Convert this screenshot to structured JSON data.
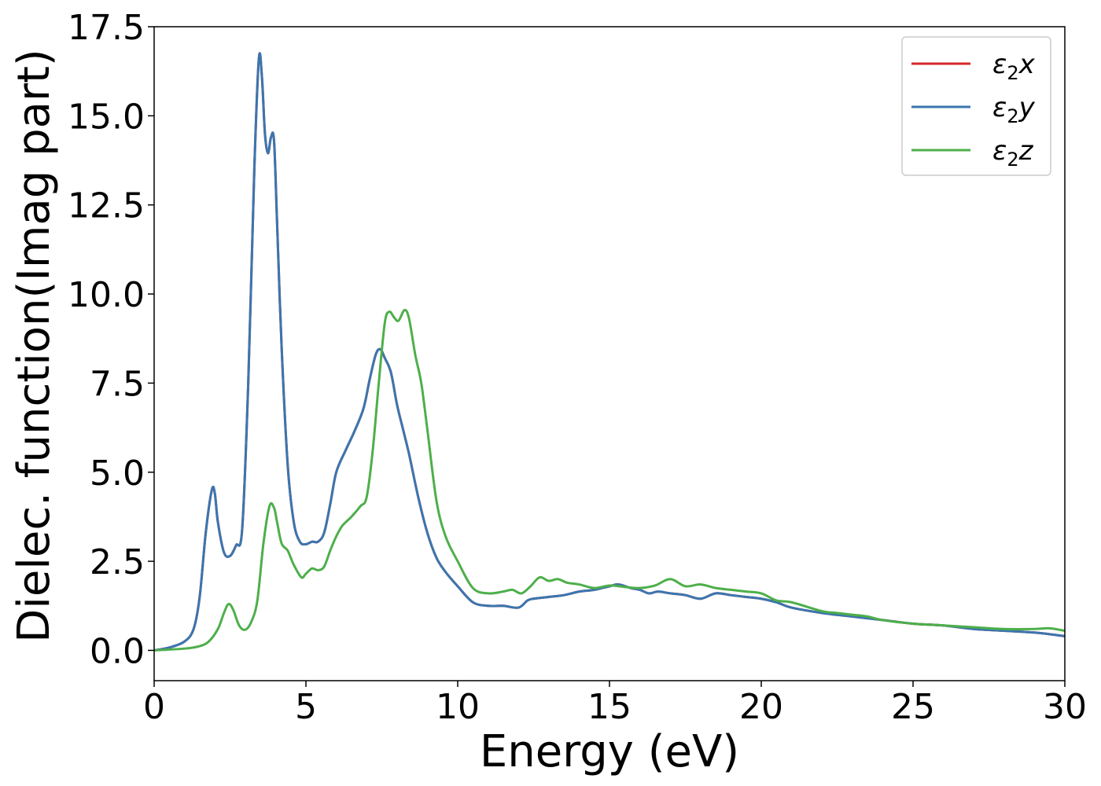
{
  "chart_data": {
    "type": "line",
    "xlabel": "Energy (eV)",
    "ylabel": "Dielec. function(Imag part)",
    "xlim": [
      0,
      30
    ],
    "ylim": [
      -0.85,
      17.5
    ],
    "xticks": [
      0,
      5,
      10,
      15,
      20,
      25,
      30
    ],
    "xtick_labels": [
      "0",
      "5",
      "10",
      "15",
      "20",
      "25",
      "30"
    ],
    "yticks": [
      0.0,
      2.5,
      5.0,
      7.5,
      10.0,
      12.5,
      15.0,
      17.5
    ],
    "ytick_labels": [
      "0.0",
      "2.5",
      "5.0",
      "7.5",
      "10.0",
      "12.5",
      "15.0",
      "17.5"
    ],
    "grid": false,
    "legend_position": "top-right",
    "series": [
      {
        "name": "ε2x",
        "legend_base": "ε",
        "legend_sub": "2",
        "legend_suffix": "x",
        "color": "#d62728",
        "x": [
          0,
          0.5,
          1.0,
          1.3,
          1.5,
          1.7,
          1.9,
          2.0,
          2.1,
          2.3,
          2.5,
          2.7,
          2.9,
          3.1,
          3.3,
          3.45,
          3.55,
          3.65,
          3.75,
          3.85,
          3.95,
          4.05,
          4.2,
          4.4,
          4.6,
          4.8,
          5.0,
          5.2,
          5.4,
          5.6,
          5.8,
          6.0,
          6.3,
          6.6,
          6.9,
          7.1,
          7.3,
          7.45,
          7.6,
          7.8,
          8.0,
          8.2,
          8.4,
          8.7,
          9.0,
          9.3,
          9.6,
          10.0,
          10.5,
          11.0,
          11.5,
          12.0,
          12.3,
          12.5,
          13.0,
          13.5,
          14.0,
          14.5,
          15.0,
          15.3,
          15.7,
          16.0,
          16.3,
          16.6,
          17.0,
          17.5,
          18.0,
          18.5,
          19.0,
          19.5,
          20.0,
          20.5,
          21.0,
          22.0,
          23.0,
          24.0,
          25.0,
          26.0,
          27.0,
          28.0,
          29.0,
          30.0
        ],
        "values": [
          0.0,
          0.08,
          0.25,
          0.6,
          1.5,
          3.3,
          4.5,
          4.4,
          3.6,
          2.75,
          2.65,
          2.95,
          3.4,
          7.5,
          13.5,
          16.6,
          16.1,
          14.5,
          13.95,
          14.4,
          14.3,
          12.0,
          8.5,
          5.2,
          3.6,
          3.05,
          2.98,
          3.05,
          3.05,
          3.3,
          4.1,
          5.0,
          5.6,
          6.15,
          6.8,
          7.6,
          8.3,
          8.45,
          8.2,
          7.8,
          6.9,
          6.2,
          5.5,
          4.3,
          3.3,
          2.6,
          2.2,
          1.8,
          1.35,
          1.25,
          1.25,
          1.2,
          1.4,
          1.45,
          1.5,
          1.55,
          1.65,
          1.7,
          1.8,
          1.85,
          1.75,
          1.7,
          1.6,
          1.65,
          1.6,
          1.55,
          1.45,
          1.6,
          1.55,
          1.5,
          1.45,
          1.35,
          1.2,
          1.05,
          0.95,
          0.85,
          0.75,
          0.7,
          0.6,
          0.55,
          0.5,
          0.4
        ]
      },
      {
        "name": "ε2y",
        "legend_base": "ε",
        "legend_sub": "2",
        "legend_suffix": "y",
        "color": "#3a76af",
        "x": [
          0,
          0.5,
          1.0,
          1.3,
          1.5,
          1.7,
          1.9,
          2.0,
          2.1,
          2.3,
          2.5,
          2.7,
          2.9,
          3.1,
          3.3,
          3.45,
          3.55,
          3.65,
          3.75,
          3.85,
          3.95,
          4.05,
          4.2,
          4.4,
          4.6,
          4.8,
          5.0,
          5.2,
          5.4,
          5.6,
          5.8,
          6.0,
          6.3,
          6.6,
          6.9,
          7.1,
          7.3,
          7.45,
          7.6,
          7.8,
          8.0,
          8.2,
          8.4,
          8.7,
          9.0,
          9.3,
          9.6,
          10.0,
          10.5,
          11.0,
          11.5,
          12.0,
          12.3,
          12.5,
          13.0,
          13.5,
          14.0,
          14.5,
          15.0,
          15.3,
          15.7,
          16.0,
          16.3,
          16.6,
          17.0,
          17.5,
          18.0,
          18.5,
          19.0,
          19.5,
          20.0,
          20.5,
          21.0,
          22.0,
          23.0,
          24.0,
          25.0,
          26.0,
          27.0,
          28.0,
          29.0,
          30.0
        ],
        "values": [
          0.0,
          0.08,
          0.25,
          0.6,
          1.5,
          3.3,
          4.5,
          4.4,
          3.6,
          2.75,
          2.65,
          2.95,
          3.4,
          7.5,
          13.5,
          16.6,
          16.1,
          14.5,
          13.95,
          14.4,
          14.3,
          12.0,
          8.5,
          5.2,
          3.6,
          3.05,
          2.98,
          3.05,
          3.05,
          3.3,
          4.1,
          5.0,
          5.6,
          6.15,
          6.8,
          7.6,
          8.3,
          8.45,
          8.2,
          7.8,
          6.9,
          6.2,
          5.5,
          4.3,
          3.3,
          2.6,
          2.2,
          1.8,
          1.35,
          1.25,
          1.25,
          1.2,
          1.4,
          1.45,
          1.5,
          1.55,
          1.65,
          1.7,
          1.8,
          1.85,
          1.75,
          1.7,
          1.6,
          1.65,
          1.6,
          1.55,
          1.45,
          1.6,
          1.55,
          1.5,
          1.45,
          1.35,
          1.2,
          1.05,
          0.95,
          0.85,
          0.75,
          0.7,
          0.6,
          0.55,
          0.5,
          0.4
        ]
      },
      {
        "name": "ε2z",
        "legend_base": "ε",
        "legend_sub": "2",
        "legend_suffix": "z",
        "color": "#4daf4a",
        "x": [
          0,
          1.0,
          1.5,
          1.8,
          2.1,
          2.3,
          2.45,
          2.6,
          2.8,
          3.0,
          3.2,
          3.4,
          3.6,
          3.8,
          3.95,
          4.05,
          4.2,
          4.4,
          4.6,
          4.85,
          5.0,
          5.2,
          5.4,
          5.6,
          5.8,
          6.0,
          6.2,
          6.5,
          6.8,
          7.0,
          7.2,
          7.4,
          7.6,
          7.75,
          7.9,
          8.05,
          8.25,
          8.4,
          8.6,
          8.8,
          9.0,
          9.3,
          9.6,
          10.0,
          10.5,
          11.0,
          11.5,
          11.8,
          12.1,
          12.4,
          12.7,
          13.0,
          13.3,
          13.6,
          14.0,
          14.5,
          15.0,
          15.5,
          16.0,
          16.5,
          17.0,
          17.5,
          18.0,
          18.5,
          19.0,
          19.5,
          20.0,
          20.5,
          21.0,
          22.0,
          22.5,
          23.0,
          23.5,
          24.0,
          25.0,
          26.0,
          27.0,
          28.0,
          29.0,
          29.5,
          30.0
        ],
        "values": [
          0.0,
          0.05,
          0.12,
          0.25,
          0.6,
          1.05,
          1.3,
          1.15,
          0.7,
          0.58,
          0.8,
          1.4,
          3.0,
          4.05,
          4.0,
          3.6,
          3.0,
          2.8,
          2.4,
          2.05,
          2.15,
          2.3,
          2.25,
          2.35,
          2.8,
          3.2,
          3.5,
          3.75,
          4.05,
          4.3,
          5.6,
          7.5,
          9.2,
          9.5,
          9.35,
          9.25,
          9.55,
          9.3,
          8.3,
          7.5,
          6.2,
          4.2,
          3.2,
          2.5,
          1.75,
          1.6,
          1.65,
          1.7,
          1.6,
          1.8,
          2.05,
          1.95,
          2.0,
          1.9,
          1.85,
          1.75,
          1.82,
          1.78,
          1.75,
          1.82,
          2.0,
          1.8,
          1.85,
          1.75,
          1.7,
          1.65,
          1.6,
          1.4,
          1.35,
          1.1,
          1.05,
          1.0,
          0.95,
          0.85,
          0.75,
          0.7,
          0.65,
          0.6,
          0.6,
          0.62,
          0.55
        ]
      }
    ]
  }
}
